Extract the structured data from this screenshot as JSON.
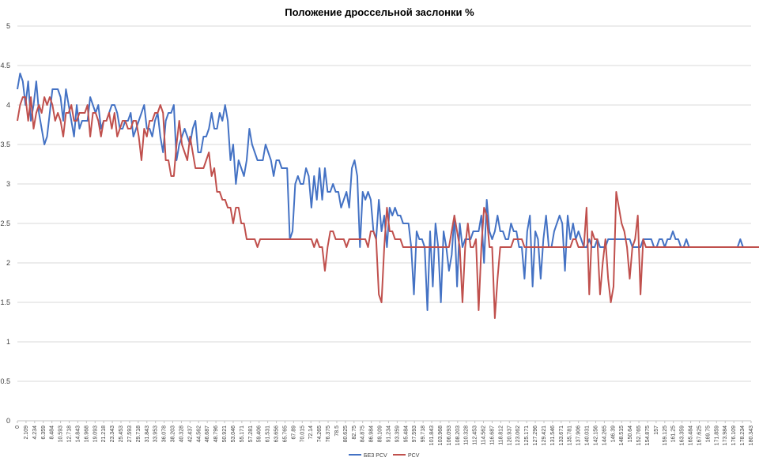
{
  "chart_data": {
    "type": "line",
    "title": "Положение дроссельной заслонки %",
    "xlabel": "",
    "ylabel": "",
    "ylim": [
      0,
      5
    ],
    "yticks": [
      "0",
      "0.5",
      "1",
      "1.5",
      "2",
      "2.5",
      "3",
      "3.5",
      "4",
      "4.5",
      "5"
    ],
    "x_tick_labels": [
      "0",
      "2.109",
      "4.234",
      "6.359",
      "8.484",
      "10.593",
      "12.718",
      "14.843",
      "16.968",
      "19.093",
      "21.218",
      "23.343",
      "25.453",
      "27.593",
      "29.718",
      "31.843",
      "33.953",
      "36.078",
      "38.203",
      "40.328",
      "42.437",
      "44.562",
      "46.687",
      "48.796",
      "50.921",
      "53.046",
      "55.171",
      "57.281",
      "59.406",
      "61.531",
      "63.656",
      "65.765",
      "67.89",
      "70.015",
      "72.14",
      "74.265",
      "76.375",
      "78.5",
      "80.625",
      "82.75",
      "84.875",
      "86.984",
      "89.109",
      "91.234",
      "93.359",
      "95.484",
      "97.593",
      "99.718",
      "101.843",
      "103.968",
      "106.093",
      "108.203",
      "110.328",
      "112.453",
      "114.562",
      "116.687",
      "118.812",
      "120.937",
      "123.062",
      "125.171",
      "127.296",
      "129.421",
      "131.546",
      "133.671",
      "135.781",
      "137.906",
      "140.031",
      "142.156",
      "144.265",
      "146.39",
      "148.515",
      "150.64",
      "152.765",
      "154.875",
      "157",
      "159.125",
      "161.25",
      "163.359",
      "165.484",
      "167.625",
      "169.75",
      "171.859",
      "173.984",
      "176.109",
      "178.234",
      "180.343"
    ],
    "grid": true,
    "legend_position": "bottom",
    "series": [
      {
        "name": "БЕЗ PCV",
        "color": "#4472C4",
        "values": [
          4.2,
          4.4,
          4.3,
          4.0,
          4.3,
          3.8,
          4.0,
          4.3,
          3.9,
          3.7,
          3.5,
          3.6,
          3.9,
          4.2,
          4.2,
          4.2,
          4.1,
          3.8,
          4.2,
          4.0,
          3.8,
          3.6,
          4.0,
          3.7,
          3.8,
          3.8,
          3.8,
          4.1,
          4.0,
          3.9,
          4.0,
          3.7,
          3.8,
          3.8,
          3.9,
          4.0,
          4.0,
          3.9,
          3.7,
          3.7,
          3.8,
          3.8,
          3.9,
          3.6,
          3.7,
          3.8,
          3.9,
          4.0,
          3.7,
          3.7,
          3.6,
          3.8,
          3.9,
          3.6,
          3.4,
          3.8,
          3.9,
          3.9,
          4.0,
          3.3,
          3.5,
          3.6,
          3.7,
          3.6,
          3.5,
          3.7,
          3.8,
          3.4,
          3.4,
          3.6,
          3.6,
          3.7,
          3.9,
          3.7,
          3.7,
          3.9,
          3.8,
          4.0,
          3.8,
          3.3,
          3.5,
          3.0,
          3.3,
          3.2,
          3.1,
          3.3,
          3.7,
          3.5,
          3.4,
          3.3,
          3.3,
          3.3,
          3.5,
          3.4,
          3.3,
          3.1,
          3.3,
          3.3,
          3.2,
          3.2,
          3.2,
          2.3,
          2.4,
          3.0,
          3.1,
          3.0,
          3.0,
          3.2,
          3.1,
          2.7,
          3.1,
          2.8,
          3.2,
          2.8,
          3.2,
          2.9,
          2.9,
          3.0,
          2.9,
          2.9,
          2.7,
          2.8,
          2.9,
          2.7,
          3.2,
          3.3,
          3.1,
          2.2,
          2.9,
          2.8,
          2.9,
          2.8,
          2.4,
          2.3,
          2.8,
          2.4,
          2.6,
          2.2,
          2.7,
          2.6,
          2.7,
          2.6,
          2.6,
          2.5,
          2.5,
          2.5,
          2.2,
          1.6,
          2.4,
          2.3,
          2.3,
          2.2,
          1.4,
          2.4,
          1.7,
          2.5,
          2.2,
          1.5,
          2.4,
          2.2,
          1.9,
          2.1,
          2.6,
          1.7,
          2.5,
          2.2,
          2.3,
          2.3,
          2.3,
          2.4,
          2.4,
          2.4,
          2.6,
          2.0,
          2.8,
          2.4,
          2.3,
          2.4,
          2.6,
          2.4,
          2.4,
          2.3,
          2.3,
          2.5,
          2.4,
          2.4,
          2.2,
          2.2,
          1.8,
          2.4,
          2.6,
          1.7,
          2.4,
          2.3,
          1.8,
          2.3,
          2.6,
          2.2,
          2.2,
          2.4,
          2.5,
          2.6,
          2.5,
          1.9,
          2.6,
          2.3,
          2.5,
          2.3,
          2.4,
          2.3,
          2.2,
          2.2,
          2.3,
          2.2,
          2.2,
          2.3,
          2.2,
          2.2,
          2.2,
          2.3,
          2.3,
          2.3,
          2.3,
          2.3,
          2.3,
          2.3,
          2.3,
          2.3,
          2.2,
          2.2,
          2.2,
          2.2,
          2.3,
          2.3,
          2.3,
          2.3,
          2.2,
          2.2,
          2.3,
          2.3,
          2.2,
          2.3,
          2.3,
          2.4,
          2.3,
          2.3,
          2.2,
          2.2,
          2.3,
          2.2,
          2.2,
          2.2,
          2.2,
          2.2,
          2.2,
          2.2,
          2.2,
          2.2,
          2.2,
          2.2,
          2.2,
          2.2,
          2.2,
          2.2,
          2.2,
          2.2,
          2.2,
          2.2,
          2.3,
          2.2,
          2.2,
          2.2,
          2.2
        ]
      },
      {
        "name": "PCV",
        "color": "#C0504D",
        "values": [
          3.8,
          4.0,
          4.1,
          4.1,
          3.8,
          4.1,
          3.7,
          3.9,
          4.0,
          3.9,
          4.1,
          4.0,
          4.1,
          4.0,
          3.8,
          3.9,
          3.8,
          3.6,
          3.9,
          3.9,
          4.0,
          3.8,
          3.8,
          3.9,
          3.9,
          3.9,
          4.0,
          3.6,
          3.9,
          3.9,
          3.8,
          3.6,
          3.8,
          3.8,
          3.9,
          3.7,
          3.9,
          3.6,
          3.7,
          3.8,
          3.8,
          3.7,
          3.7,
          3.8,
          3.8,
          3.6,
          3.3,
          3.7,
          3.6,
          3.8,
          3.8,
          3.9,
          3.9,
          4.0,
          3.9,
          3.3,
          3.3,
          3.1,
          3.1,
          3.5,
          3.8,
          3.5,
          3.4,
          3.3,
          3.6,
          3.4,
          3.2,
          3.2,
          3.2,
          3.2,
          3.3,
          3.4,
          3.1,
          3.2,
          2.9,
          2.9,
          2.8,
          2.8,
          2.7,
          2.7,
          2.5,
          2.7,
          2.7,
          2.5,
          2.5,
          2.3,
          2.3,
          2.3,
          2.3,
          2.2,
          2.3,
          2.3,
          2.3,
          2.3,
          2.3,
          2.3,
          2.3,
          2.3,
          2.3,
          2.3,
          2.3,
          2.3,
          2.3,
          2.3,
          2.3,
          2.3,
          2.3,
          2.3,
          2.3,
          2.3,
          2.2,
          2.3,
          2.2,
          2.2,
          1.9,
          2.2,
          2.4,
          2.4,
          2.3,
          2.3,
          2.3,
          2.3,
          2.2,
          2.3,
          2.3,
          2.3,
          2.3,
          2.3,
          2.3,
          2.3,
          2.2,
          2.4,
          2.4,
          2.3,
          1.6,
          1.5,
          2.2,
          2.7,
          2.4,
          2.4,
          2.3,
          2.3,
          2.3,
          2.2,
          2.2,
          2.2,
          2.2,
          2.2,
          2.2,
          2.2,
          2.2,
          2.2,
          2.2,
          2.2,
          2.2,
          2.2,
          2.2,
          2.2,
          2.2,
          2.2,
          2.2,
          2.4,
          2.6,
          2.4,
          2.2,
          1.5,
          2.2,
          2.5,
          2.2,
          2.2,
          2.3,
          1.4,
          2.2,
          2.7,
          2.6,
          2.2,
          2.2,
          1.3,
          1.8,
          2.2,
          2.2,
          2.2,
          2.2,
          2.2,
          2.3,
          2.3,
          2.3,
          2.3,
          2.2,
          2.2,
          2.2,
          2.2,
          2.2,
          2.2,
          2.2,
          2.2,
          2.2,
          2.2,
          2.2,
          2.2,
          2.2,
          2.2,
          2.2,
          2.2,
          2.2,
          2.2,
          2.3,
          2.3,
          2.2,
          2.2,
          2.2,
          2.7,
          1.6,
          2.4,
          2.3,
          2.3,
          1.6,
          2.0,
          2.3,
          1.8,
          1.5,
          1.7,
          2.9,
          2.7,
          2.5,
          2.4,
          2.2,
          1.8,
          2.2,
          2.3,
          2.6,
          1.6,
          2.3,
          2.2,
          2.2,
          2.2,
          2.2,
          2.2,
          2.2,
          2.2,
          2.2,
          2.2,
          2.2,
          2.2,
          2.2,
          2.2,
          2.2,
          2.2,
          2.2,
          2.2,
          2.2,
          2.2,
          2.2,
          2.2,
          2.2,
          2.2,
          2.2,
          2.2,
          2.2,
          2.2,
          2.2,
          2.2,
          2.2,
          2.2,
          2.2,
          2.2,
          2.2,
          2.2,
          2.2,
          2.2,
          2.2,
          2.2,
          2.2,
          2.2,
          2.2,
          2.2,
          2.2
        ]
      }
    ]
  }
}
